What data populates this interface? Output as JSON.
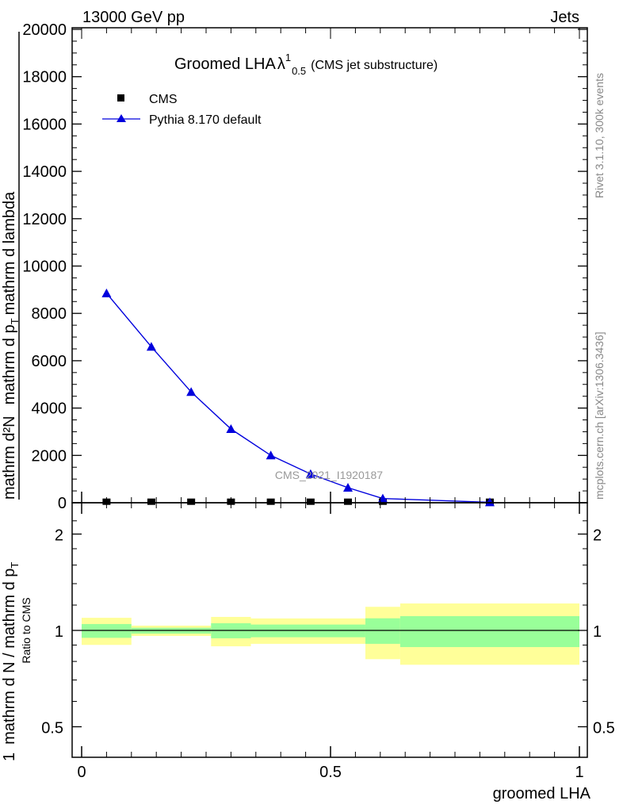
{
  "header": {
    "left": "13000 GeV pp",
    "right": "Jets"
  },
  "side_text": {
    "rivet": "Rivet 3.1.10,  300k events",
    "mcplots": "mcplots.cern.ch [arXiv:1306.3436]"
  },
  "watermark": "CMS_2021_I1920187",
  "colors": {
    "mc": "#0000dd",
    "data": "#000000",
    "band_inner": "#99ff99",
    "band_outer": "#ffff99"
  },
  "chart_data": [
    {
      "type": "line",
      "title": "Groomed LHA",
      "title_symbol": "λ",
      "title_sup": "1",
      "title_sub": "0.5",
      "title_suffix": "(CMS jet substructure)",
      "ylabel_parts": [
        "1",
        "mathrm d N / mathrm d p",
        "T",
        "mathrm d²N",
        "mathrm d p",
        "T",
        "mathrm d lambda"
      ],
      "xlim": [
        0,
        1
      ],
      "ylim": [
        0,
        20000
      ],
      "yticks": [
        "0",
        "2000",
        "4000",
        "6000",
        "8000",
        "10000",
        "12000",
        "14000",
        "16000",
        "18000",
        "20000"
      ],
      "legend": {
        "position": "top-left",
        "entries": [
          "CMS",
          "Pythia 8.170 default"
        ]
      },
      "x": [
        0.05,
        0.14,
        0.22,
        0.3,
        0.38,
        0.46,
        0.535,
        0.605,
        0.82
      ],
      "series": [
        {
          "name": "CMS",
          "values": [
            10,
            10,
            10,
            10,
            10,
            10,
            10,
            10,
            10
          ]
        },
        {
          "name": "Pythia 8.170 default",
          "values": [
            8850,
            6590,
            4680,
            3115,
            2000,
            1215,
            636,
            178,
            20
          ],
          "errors": [
            150,
            100,
            60,
            40,
            30,
            20,
            15,
            8,
            3
          ]
        }
      ]
    },
    {
      "type": "area",
      "ylabel": "Ratio to CMS",
      "xlabel": "groomed LHA",
      "xticks": [
        "0",
        "0.5",
        "1"
      ],
      "yticks": [
        "0.5",
        "1",
        "2"
      ],
      "yscale": "log",
      "ylim": [
        0.4,
        2.48
      ],
      "bins": [
        {
          "lo": 0.0,
          "hi": 0.1,
          "inner": [
            0.948,
            1.047
          ],
          "outer": [
            0.901,
            1.095
          ]
        },
        {
          "lo": 0.1,
          "hi": 0.26,
          "inner": [
            0.977,
            1.019
          ],
          "outer": [
            0.961,
            1.035
          ]
        },
        {
          "lo": 0.26,
          "hi": 0.34,
          "inner": [
            0.945,
            1.053
          ],
          "outer": [
            0.892,
            1.102
          ]
        },
        {
          "lo": 0.34,
          "hi": 0.57,
          "inner": [
            0.952,
            1.043
          ],
          "outer": [
            0.908,
            1.09
          ]
        },
        {
          "lo": 0.57,
          "hi": 0.64,
          "inner": [
            0.908,
            1.091
          ],
          "outer": [
            0.813,
            1.185
          ]
        },
        {
          "lo": 0.64,
          "hi": 1.0,
          "inner": [
            0.887,
            1.108
          ],
          "outer": [
            0.781,
            1.214
          ]
        }
      ]
    }
  ]
}
